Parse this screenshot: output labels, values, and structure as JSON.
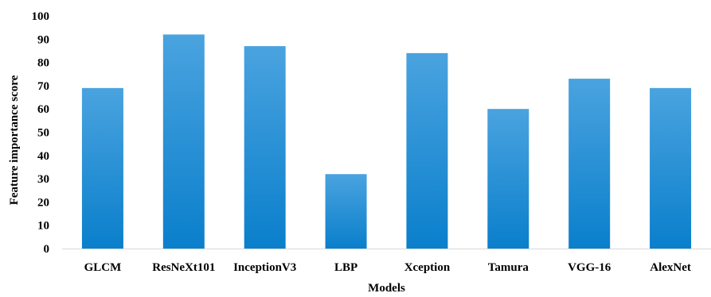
{
  "chart_data": {
    "type": "bar",
    "categories": [
      "GLCM",
      "ResNeXt101",
      "InceptionV3",
      "LBP",
      "Xception",
      "Tamura",
      "VGG-16",
      "AlexNet"
    ],
    "values": [
      69,
      92,
      87,
      32,
      84,
      60,
      73,
      69
    ],
    "xlabel": "Models",
    "ylabel": "Feature importance score",
    "ylim": [
      0,
      100
    ],
    "yticks": [
      0,
      10,
      20,
      30,
      40,
      50,
      60,
      70,
      80,
      90,
      100
    ],
    "grid": false,
    "legend": "none",
    "colors": {
      "bar_top": "#4aa3df",
      "bar_bottom": "#0a7fcc"
    }
  }
}
